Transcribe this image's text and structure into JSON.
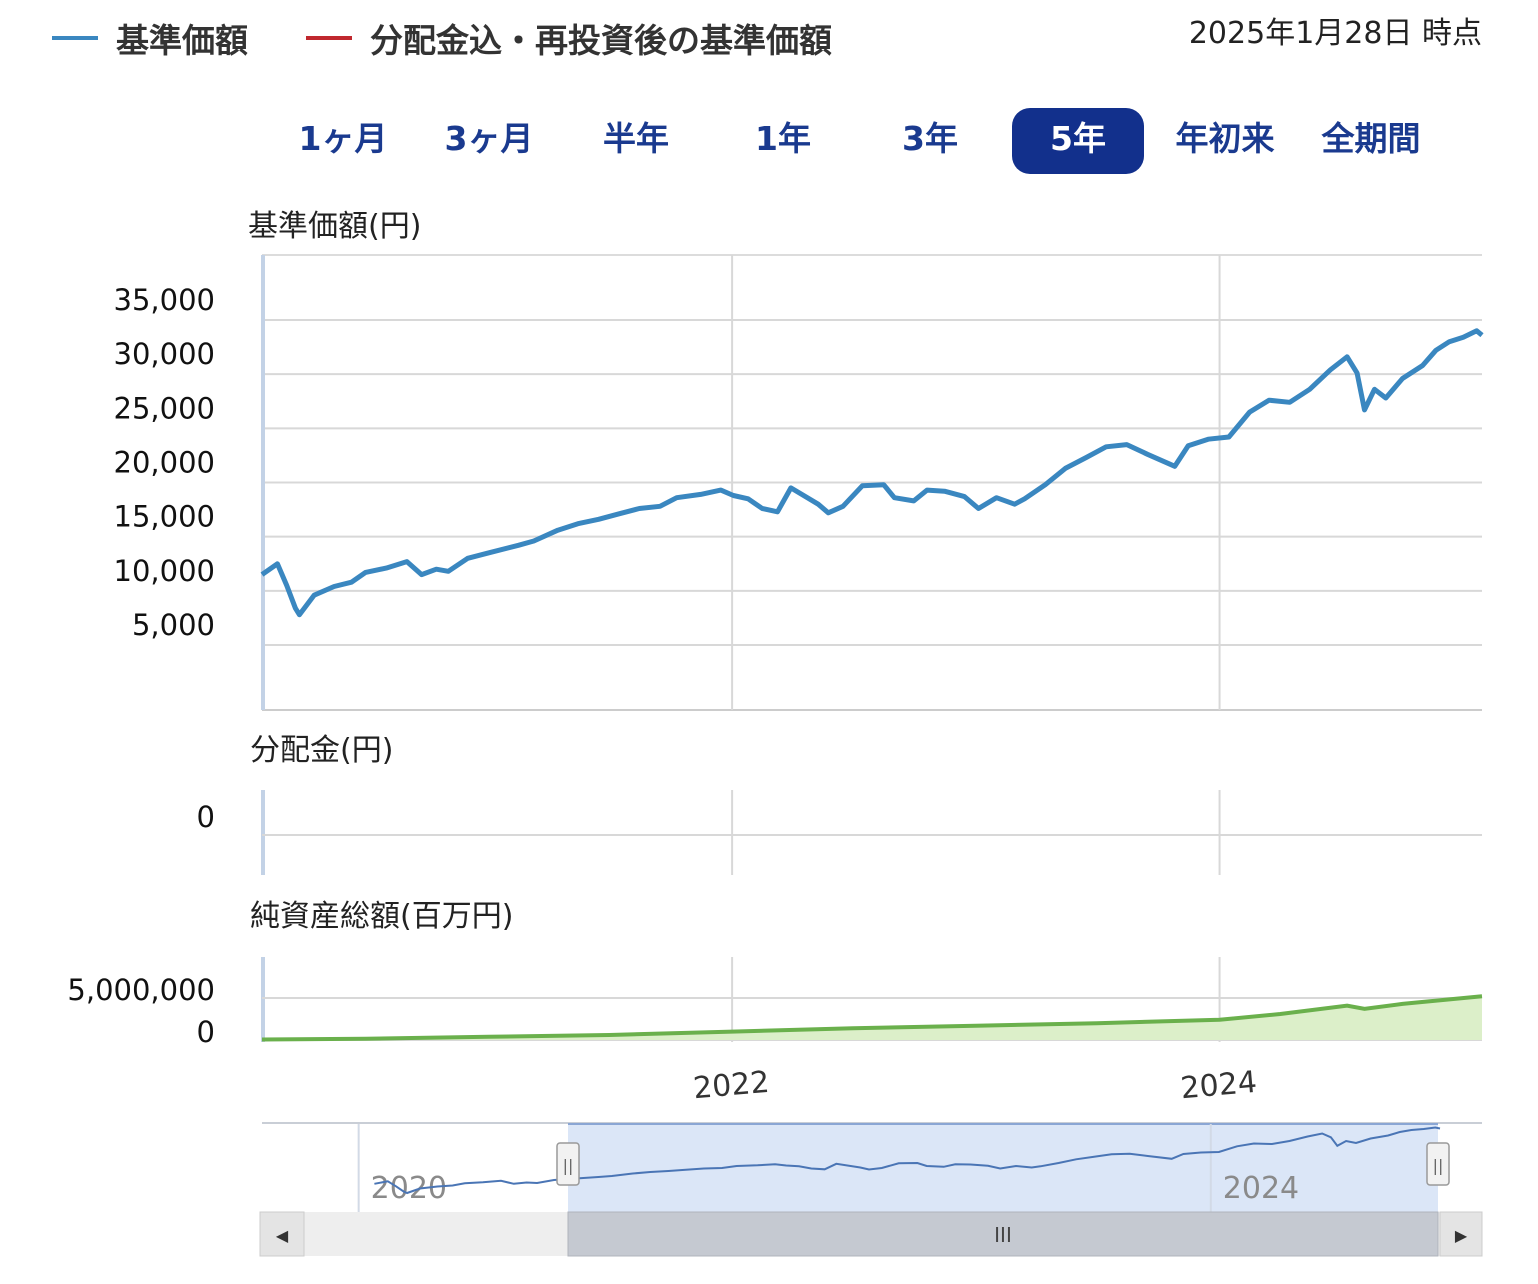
{
  "legend": {
    "items": [
      {
        "label": "基準価額",
        "color": "#3a87c0"
      },
      {
        "label": "分配金込・再投資後の基準価額",
        "color": "#c0282e"
      }
    ]
  },
  "as_of": "2025年1月28日 時点",
  "periods": {
    "items": [
      "1ヶ月",
      "3ヶ月",
      "半年",
      "1年",
      "3年",
      "5年",
      "年初来",
      "全期間"
    ],
    "active_index": 5
  },
  "colors": {
    "price_line": "#3a87c0",
    "nav_line": "#6ab04c",
    "nav_fill": "#dcefc9",
    "navigator_fill": "#dbe6f7",
    "accent": "#12308c"
  },
  "chart_data": [
    {
      "type": "line",
      "title": "基準価額(円)",
      "ylim": [
        5000,
        35000
      ],
      "yticks": [
        "35,000",
        "30,000",
        "25,000",
        "20,000",
        "15,000",
        "10,000",
        "5,000"
      ],
      "ytick_values": [
        35000,
        30000,
        25000,
        20000,
        15000,
        10000,
        5000
      ],
      "grid": true,
      "series": [
        {
          "name": "基準価額",
          "x": [
            "2020-01-28",
            "2020-02-20",
            "2020-03-05",
            "2020-03-18",
            "2020-03-24",
            "2020-04-15",
            "2020-05-15",
            "2020-06-10",
            "2020-07-01",
            "2020-08-01",
            "2020-09-01",
            "2020-09-23",
            "2020-10-15",
            "2020-11-02",
            "2020-12-01",
            "2021-01-01",
            "2021-02-15",
            "2021-03-10",
            "2021-04-15",
            "2021-05-15",
            "2021-06-15",
            "2021-07-15",
            "2021-08-15",
            "2021-09-15",
            "2021-10-10",
            "2021-11-15",
            "2021-12-15",
            "2022-01-03",
            "2022-01-25",
            "2022-02-15",
            "2022-03-10",
            "2022-03-30",
            "2022-05-10",
            "2022-05-25",
            "2022-06-16",
            "2022-07-15",
            "2022-08-16",
            "2022-09-01",
            "2022-09-30",
            "2022-10-20",
            "2022-11-15",
            "2022-12-15",
            "2023-01-05",
            "2023-02-01",
            "2023-02-28",
            "2023-03-15",
            "2023-04-15",
            "2023-05-15",
            "2023-06-15",
            "2023-07-15",
            "2023-08-15",
            "2023-09-15",
            "2023-10-26",
            "2023-11-15",
            "2023-12-15",
            "2024-01-15",
            "2024-02-15",
            "2024-03-15",
            "2024-04-15",
            "2024-05-15",
            "2024-06-15",
            "2024-07-10",
            "2024-07-25",
            "2024-08-05",
            "2024-08-20",
            "2024-09-06",
            "2024-10-01",
            "2024-10-31",
            "2024-11-20",
            "2024-12-10",
            "2024-12-31",
            "2025-01-20",
            "2025-01-28"
          ],
          "values": [
            11500,
            12500,
            10500,
            8400,
            7800,
            9600,
            10400,
            10800,
            11700,
            12100,
            12700,
            11500,
            12000,
            11800,
            13000,
            13500,
            14200,
            14600,
            15600,
            16200,
            16600,
            17100,
            17600,
            17800,
            18600,
            18900,
            19300,
            18800,
            18500,
            17600,
            17300,
            19500,
            18000,
            17200,
            17800,
            19700,
            19800,
            18600,
            18300,
            19300,
            19200,
            18700,
            17600,
            18600,
            18000,
            18500,
            19800,
            21300,
            22300,
            23300,
            23500,
            22600,
            21500,
            23400,
            24000,
            24200,
            26500,
            27600,
            27400,
            28600,
            30400,
            31600,
            30100,
            26700,
            28600,
            27800,
            29600,
            30800,
            32200,
            33000,
            33400,
            34000,
            33600
          ]
        }
      ]
    },
    {
      "type": "bar",
      "title": "分配金(円)",
      "yticks": [
        "0"
      ],
      "values": [
        0
      ]
    },
    {
      "type": "area",
      "title": "純資産総額(百万円)",
      "ylim": [
        0,
        5000000
      ],
      "yticks": [
        "5,000,000",
        "0"
      ],
      "ytick_values": [
        5000000,
        0
      ],
      "series": [
        {
          "name": "純資産総額",
          "x": [
            "2020-01-28",
            "2020-07-01",
            "2021-01-01",
            "2021-07-01",
            "2022-01-01",
            "2022-07-01",
            "2023-01-01",
            "2023-07-01",
            "2024-01-01",
            "2024-04-01",
            "2024-07-10",
            "2024-08-05",
            "2024-10-01",
            "2025-01-28"
          ],
          "values": [
            60000,
            150000,
            380000,
            600000,
            1000000,
            1400000,
            1700000,
            2000000,
            2400000,
            3100000,
            4100000,
            3700000,
            4300000,
            5200000
          ]
        }
      ]
    }
  ],
  "xaxis": {
    "ticks": [
      "2022",
      "2024"
    ],
    "tick_dates": [
      "2022-01-01",
      "2024-01-01"
    ],
    "range": [
      "2020-01-28",
      "2025-01-28"
    ]
  },
  "navigator": {
    "labels": [
      "2020",
      "2024"
    ],
    "range": [
      "2019-10-01",
      "2025-01-28"
    ],
    "selected": [
      "2020-01-28",
      "2025-01-28"
    ],
    "thumb_label": "III",
    "handle_label": "||",
    "left_arrow": "◀",
    "right_arrow": "▶"
  }
}
